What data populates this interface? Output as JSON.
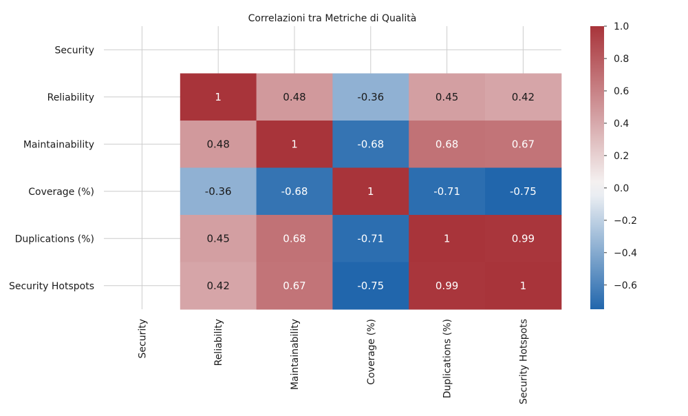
{
  "chart_data": {
    "type": "heatmap",
    "title": "Correlazioni tra Metriche di Qualità",
    "xlabel": "",
    "ylabel": "",
    "rows": [
      "Security",
      "Reliability",
      "Maintainability",
      "Coverage (%)",
      "Duplications (%)",
      "Security Hotspots"
    ],
    "columns": [
      "Security",
      "Reliability",
      "Maintainability",
      "Coverage (%)",
      "Duplications (%)",
      "Security Hotspots"
    ],
    "values": [
      [
        null,
        null,
        null,
        null,
        null,
        null
      ],
      [
        null,
        1,
        0.48,
        -0.36,
        0.45,
        0.42
      ],
      [
        null,
        0.48,
        1,
        -0.68,
        0.68,
        0.67
      ],
      [
        null,
        -0.36,
        -0.68,
        1,
        -0.71,
        -0.75
      ],
      [
        null,
        0.45,
        0.68,
        -0.71,
        1,
        0.99
      ],
      [
        null,
        0.42,
        0.67,
        -0.75,
        0.99,
        1
      ]
    ],
    "annotations": [
      [
        "",
        "",
        "",
        "",
        "",
        ""
      ],
      [
        "",
        "1",
        "0.48",
        "-0.36",
        "0.45",
        "0.42"
      ],
      [
        "",
        "0.48",
        "1",
        "-0.68",
        "0.68",
        "0.67"
      ],
      [
        "",
        "-0.36",
        "-0.68",
        "1",
        "-0.71",
        "-0.75"
      ],
      [
        "",
        "0.45",
        "0.68",
        "-0.71",
        "1",
        "0.99"
      ],
      [
        "",
        "0.42",
        "0.67",
        "-0.75",
        "0.99",
        "1"
      ]
    ],
    "colorscale": {
      "name": "vlag",
      "vmin": -0.75,
      "vmax": 1.0,
      "low_color": "#2166ac",
      "mid_color": "#f7f7f7",
      "high_color": "#a8343a"
    },
    "colorbar": {
      "ticks": [
        1.0,
        0.8,
        0.6,
        0.4,
        0.2,
        0.0,
        -0.2,
        -0.4,
        -0.6
      ],
      "tick_labels": [
        "1.0",
        "0.8",
        "0.6",
        "0.4",
        "0.2",
        "0.0",
        "−0.2",
        "−0.4",
        "−0.6"
      ],
      "placement": "right"
    },
    "grid": true
  }
}
